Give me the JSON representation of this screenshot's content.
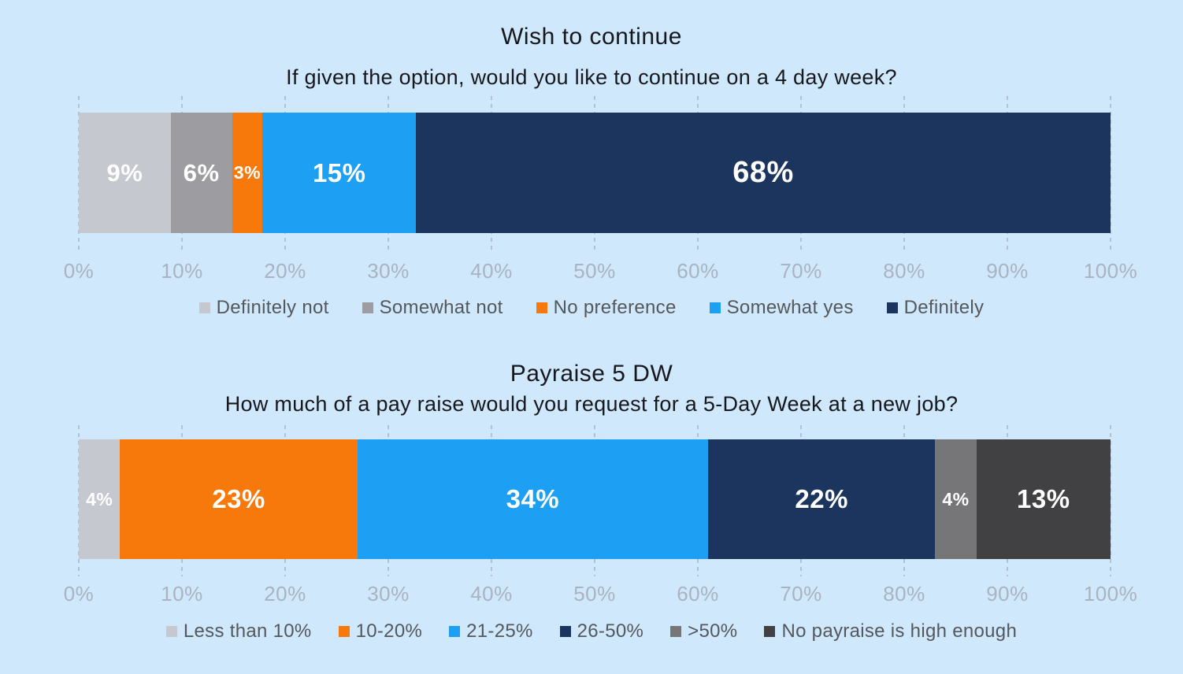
{
  "page": {
    "background_color": "#D0E8FB",
    "title_color": "#17181D",
    "tick_color": "#A9B3C1",
    "legend_text_color": "#54585C"
  },
  "chart_data": [
    {
      "type": "bar",
      "subtype": "horizontal-stacked",
      "title": "Wish to continue",
      "subtitle": "If given the option, would you like to continue on a 4 day week?",
      "categories": [
        "Definitely not",
        "Somewhat not",
        "No preference",
        "Somewhat yes",
        "Definitely"
      ],
      "values": [
        9,
        6,
        3,
        15,
        68
      ],
      "value_labels": [
        "9%",
        "6%",
        "3%",
        "15%",
        "68%"
      ],
      "colors": [
        "#C6C8CF",
        "#9D9DA1",
        "#F8790B",
        "#1D9FF3",
        "#1B355E"
      ],
      "xlim": [
        0,
        100
      ],
      "x_ticks": [
        "0%",
        "10%",
        "20%",
        "30%",
        "40%",
        "50%",
        "60%",
        "70%",
        "80%",
        "90%",
        "100%"
      ],
      "grid": "vertical-dashed",
      "legend_position": "bottom"
    },
    {
      "type": "bar",
      "subtype": "horizontal-stacked",
      "title": "Payraise 5 DW",
      "subtitle": "How much of a pay raise would you request for a 5-Day Week at a new job?",
      "categories": [
        "Less than 10%",
        "10-20%",
        "21-25%",
        "26-50%",
        ">50%",
        "No payraise is high enough"
      ],
      "values": [
        4,
        23,
        34,
        22,
        4,
        13
      ],
      "value_labels": [
        "4%",
        "23%",
        "34%",
        "22%",
        "4%",
        "13%"
      ],
      "colors": [
        "#C6C8CF",
        "#F8790B",
        "#1D9FF3",
        "#1B355E",
        "#767678",
        "#414143"
      ],
      "xlim": [
        0,
        100
      ],
      "x_ticks": [
        "0%",
        "10%",
        "20%",
        "30%",
        "40%",
        "50%",
        "60%",
        "70%",
        "80%",
        "90%",
        "100%"
      ],
      "grid": "vertical-dashed",
      "legend_position": "bottom"
    }
  ]
}
